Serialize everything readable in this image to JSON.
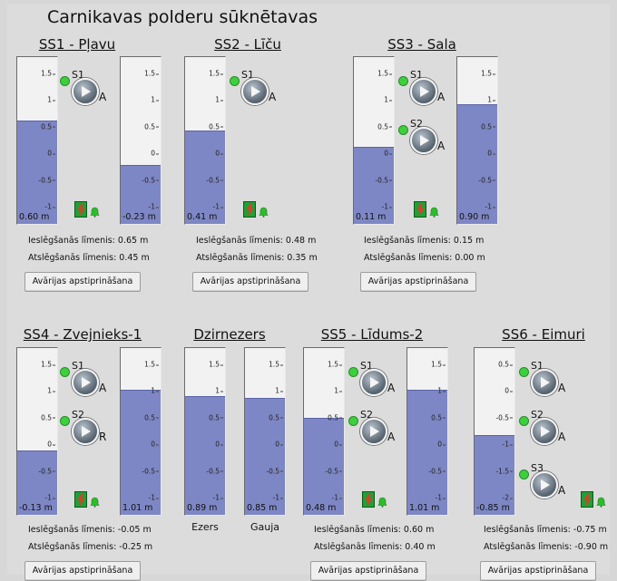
{
  "app_title": "Carnikavas polderu sūknētavas",
  "colors": {
    "level_fill": "#7e87c5",
    "led_green": "#3cd13c",
    "alarm_green": "#1fa036",
    "bell_green": "#2bbd2b"
  },
  "icons": {
    "pump": "play-triangle-icon",
    "led": "status-led-icon",
    "alarm": "lightning-alarm-icon",
    "bell": "bell-icon"
  },
  "stations": {
    "ss1": {
      "title": "SS1 - Pļavu",
      "gauge_left": {
        "value_label": "0.60 m",
        "level": 0.6,
        "scale": [
          "1.5",
          "1",
          "0.5",
          "0",
          "-0.5",
          "-1"
        ]
      },
      "gauge_right": {
        "value_label": "-0.23 m",
        "level": -0.23,
        "scale": [
          "1.5",
          "1",
          "0.5",
          "0",
          "-0.5",
          "-1"
        ]
      },
      "pumps": [
        {
          "name": "S1",
          "mode": "A"
        }
      ],
      "on_level": "Ieslēgšanās līmenis: 0.65 m",
      "off_level": "Atslēgšanās līmenis: 0.45 m",
      "ack_label": "Avārijas apstiprināšana"
    },
    "ss2": {
      "title": "SS2 - Līču",
      "gauge_left": {
        "value_label": "0.41 m",
        "level": 0.41,
        "scale": [
          "1.5",
          "1",
          "0.5",
          "0",
          "-0.5",
          "-1"
        ]
      },
      "pumps": [
        {
          "name": "S1",
          "mode": "A"
        }
      ],
      "on_level": "Ieslēgšanās līmenis: 0.48 m",
      "off_level": "Atslēgšanās līmenis: 0.35 m",
      "ack_label": "Avārijas apstiprināšana"
    },
    "ss3": {
      "title": "SS3 - Sala",
      "gauge_left": {
        "value_label": "0.11 m",
        "level": 0.11,
        "scale": [
          "1.5",
          "1",
          "0.5",
          "0",
          "-0.5",
          "-1"
        ]
      },
      "gauge_right": {
        "value_label": "0.90 m",
        "level": 0.9,
        "scale": [
          "1.5",
          "1",
          "0.5",
          "0",
          "-0.5",
          "-1"
        ]
      },
      "pumps": [
        {
          "name": "S1",
          "mode": "A"
        },
        {
          "name": "S2",
          "mode": "A"
        }
      ],
      "on_level": "Ieslēgšanās līmenis: 0.15 m",
      "off_level": "Atslēgšanās līmenis: 0.00 m",
      "ack_label": "Avārijas apstiprināšana"
    },
    "ss4": {
      "title": "SS4 - Zvejnieks-1",
      "gauge_left": {
        "value_label": "-0.13 m",
        "level": -0.13,
        "scale": [
          "1.5",
          "1",
          "0.5",
          "0",
          "-0.5",
          "-1"
        ]
      },
      "gauge_right": {
        "value_label": "1.01 m",
        "level": 1.01,
        "scale": [
          "1.5",
          "1",
          "0.5",
          "0",
          "-0.5",
          "-1"
        ]
      },
      "pumps": [
        {
          "name": "S1",
          "mode": "A"
        },
        {
          "name": "S2",
          "mode": "R"
        }
      ],
      "on_level": "Ieslēgšanās līmenis: -0.05 m",
      "off_level": "Atslēgšanās līmenis: -0.25 m",
      "ack_label": "Avārijas apstiprināšana"
    },
    "dzirnezers": {
      "title": "Dzirnezers",
      "gauge_left": {
        "value_label": "0.89 m",
        "level": 0.89,
        "caption": "Ezers",
        "scale": [
          "1.5",
          "1",
          "0.5",
          "0",
          "-0.5",
          "-1"
        ]
      },
      "gauge_right": {
        "value_label": "0.85 m",
        "level": 0.85,
        "caption": "Gauja",
        "scale": [
          "1.5",
          "1",
          "0.5",
          "0",
          "-0.5",
          "-1"
        ]
      }
    },
    "ss5": {
      "title": "SS5 - Līdums-2",
      "gauge_left": {
        "value_label": "0.48 m",
        "level": 0.48,
        "scale": [
          "1.5",
          "1",
          "0.5",
          "0",
          "-0.5",
          "-1"
        ]
      },
      "gauge_right": {
        "value_label": "1.01 m",
        "level": 1.01,
        "scale": [
          "1.5",
          "1",
          "0.5",
          "0",
          "-0.5",
          "-1"
        ]
      },
      "pumps": [
        {
          "name": "S1",
          "mode": "A"
        },
        {
          "name": "S2",
          "mode": "A"
        }
      ],
      "on_level": "Ieslēgšanās līmenis: 0.60 m",
      "off_level": "Atslēgšanās līmenis: 0.40 m",
      "ack_label": "Avārijas apstiprināšana"
    },
    "ss6": {
      "title": "SS6 - Eimuri",
      "gauge_left": {
        "value_label": "-0.85 m",
        "level": -0.85,
        "scale": [
          "0.5",
          "0",
          "-0.5",
          "-1",
          "-1.5",
          "-2"
        ]
      },
      "pumps": [
        {
          "name": "S1",
          "mode": "A"
        },
        {
          "name": "S2",
          "mode": "A"
        },
        {
          "name": "S3",
          "mode": "A"
        }
      ],
      "on_level": "Ieslēgšanās līmenis: -0.75 m",
      "off_level": "Atslēgšanās līmenis: -0.90 m",
      "ack_label": "Avārijas apstiprināšana"
    }
  }
}
